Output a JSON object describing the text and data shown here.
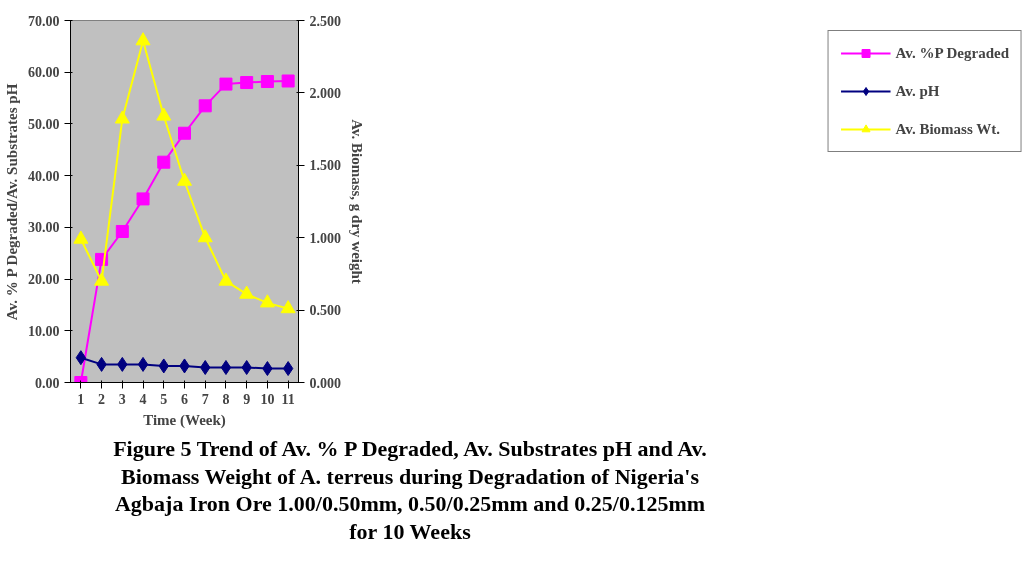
{
  "chart_data": {
    "type": "line",
    "xlabel": "Time (Week)",
    "ylabel": "Av. % P Degraded/Av. Substrates pH",
    "y2label": "Av. Biomass, g dry weight",
    "categories": [
      "1",
      "2",
      "3",
      "4",
      "5",
      "6",
      "7",
      "8",
      "9",
      "10",
      "11"
    ],
    "series": [
      {
        "name": "Av. %P Degraded",
        "color": "#ff00ff",
        "marker": "square",
        "values": [
          0,
          23.8,
          29.2,
          35.5,
          42.6,
          48.2,
          53.5,
          57.7,
          58.0,
          58.2,
          58.3
        ]
      },
      {
        "name": "Av. pH",
        "color": "#000080",
        "marker": "diamond",
        "values": [
          4.8,
          3.5,
          3.5,
          3.5,
          3.2,
          3.2,
          2.9,
          2.9,
          2.9,
          2.7,
          2.7
        ]
      },
      {
        "name": "Av. Biomass Wt.",
        "color": "#ffff00",
        "marker": "triangle",
        "axis": "y2",
        "values": [
          0.99,
          0.7,
          1.82,
          2.36,
          1.84,
          1.39,
          1.0,
          0.7,
          0.61,
          0.55,
          0.51
        ]
      }
    ],
    "ylim": [
      0,
      70
    ],
    "yticks": [
      {
        "value": 0,
        "label": "0.00"
      },
      {
        "value": 10,
        "label": "10.00"
      },
      {
        "value": 20,
        "label": "20.00"
      },
      {
        "value": 30,
        "label": "30.00"
      },
      {
        "value": 40,
        "label": "40.00"
      },
      {
        "value": 50,
        "label": "50.00"
      },
      {
        "value": 60,
        "label": "60.00"
      },
      {
        "value": 70,
        "label": "70.00"
      }
    ],
    "y2lim": [
      0,
      2.5
    ],
    "y2ticks": [
      {
        "value": 0,
        "label": "0.000"
      },
      {
        "value": 0.5,
        "label": "0.500"
      },
      {
        "value": 1,
        "label": "1.000"
      },
      {
        "value": 1.5,
        "label": "1.500"
      },
      {
        "value": 2,
        "label": "2.000"
      },
      {
        "value": 2.5,
        "label": "2.500"
      }
    ],
    "grid": false,
    "legend": "right",
    "line_style": "solid",
    "annotations": [
      "Figure 5     Trend of Av. % P Degraded, Av. Substrates pH and Av. Biomass Weight of A. terreus during Degradation of Nigeria's Agbaja Iron Ore 1.00/0.50mm, 0.50/0.25mm and 0.25/0.125mm for 10 Weeks"
    ]
  }
}
